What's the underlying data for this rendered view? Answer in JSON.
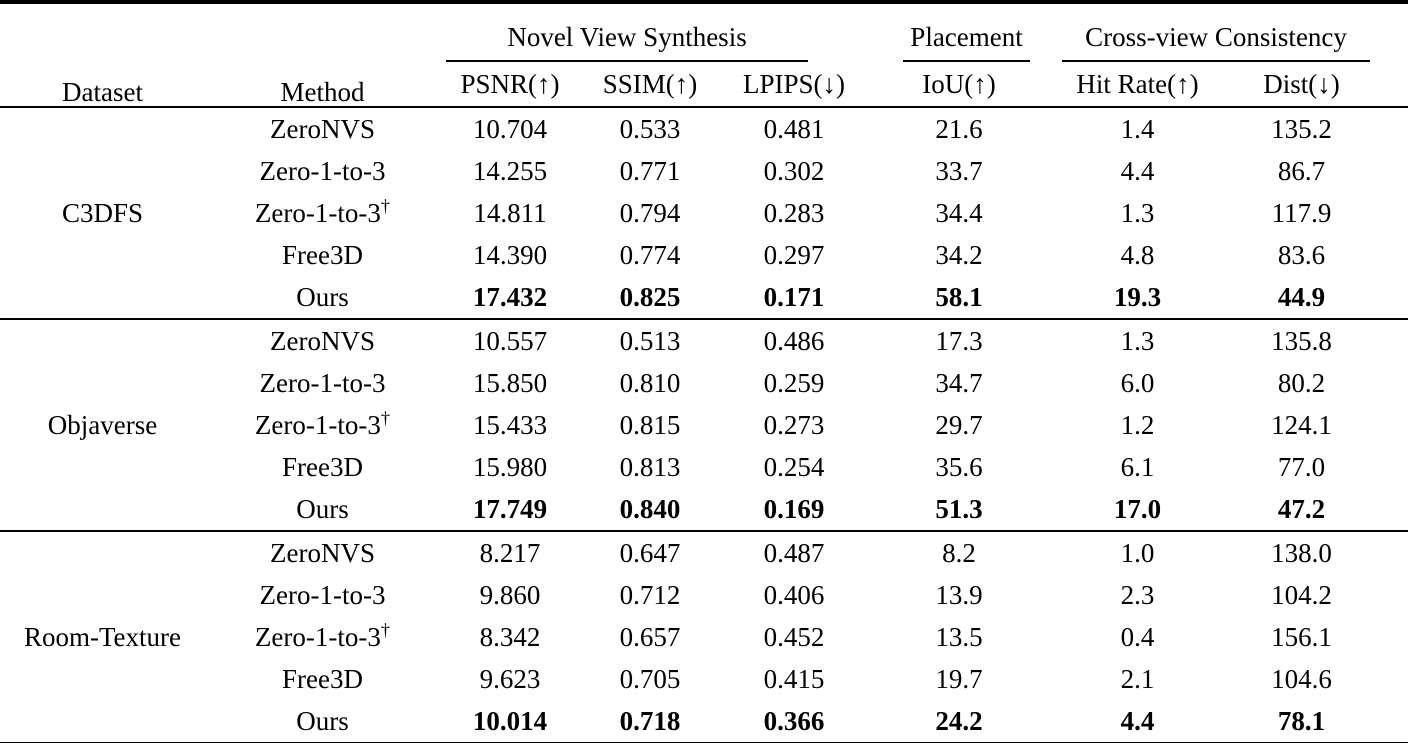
{
  "table": {
    "header": {
      "dataset": "Dataset",
      "method": "Method",
      "groups": [
        {
          "label": "Novel View Synthesis"
        },
        {
          "label": "Placement"
        },
        {
          "label": "Cross-view Consistency"
        }
      ],
      "subcols": [
        "PSNR(↑)",
        "SSIM(↑)",
        "LPIPS(↓)",
        "IoU(↑)",
        "Hit Rate(↑)",
        "Dist(↓)"
      ]
    },
    "blocks": [
      {
        "dataset": "C3DFS",
        "rows": [
          {
            "method": "ZeroNVS",
            "psnr": "10.704",
            "ssim": "0.533",
            "lpips": "0.481",
            "iou": "21.6",
            "hit_rate": "1.4",
            "dist": "135.2",
            "bold": false
          },
          {
            "method": "Zero-1-to-3",
            "psnr": "14.255",
            "ssim": "0.771",
            "lpips": "0.302",
            "iou": "33.7",
            "hit_rate": "4.4",
            "dist": "86.7",
            "bold": false
          },
          {
            "method": "Zero-1-to-3†",
            "psnr": "14.811",
            "ssim": "0.794",
            "lpips": "0.283",
            "iou": "34.4",
            "hit_rate": "1.3",
            "dist": "117.9",
            "bold": false
          },
          {
            "method": "Free3D",
            "psnr": "14.390",
            "ssim": "0.774",
            "lpips": "0.297",
            "iou": "34.2",
            "hit_rate": "4.8",
            "dist": "83.6",
            "bold": false
          },
          {
            "method": "Ours",
            "psnr": "17.432",
            "ssim": "0.825",
            "lpips": "0.171",
            "iou": "58.1",
            "hit_rate": "19.3",
            "dist": "44.9",
            "bold": true
          }
        ]
      },
      {
        "dataset": "Objaverse",
        "rows": [
          {
            "method": "ZeroNVS",
            "psnr": "10.557",
            "ssim": "0.513",
            "lpips": "0.486",
            "iou": "17.3",
            "hit_rate": "1.3",
            "dist": "135.8",
            "bold": false
          },
          {
            "method": "Zero-1-to-3",
            "psnr": "15.850",
            "ssim": "0.810",
            "lpips": "0.259",
            "iou": "34.7",
            "hit_rate": "6.0",
            "dist": "80.2",
            "bold": false
          },
          {
            "method": "Zero-1-to-3†",
            "psnr": "15.433",
            "ssim": "0.815",
            "lpips": "0.273",
            "iou": "29.7",
            "hit_rate": "1.2",
            "dist": "124.1",
            "bold": false
          },
          {
            "method": "Free3D",
            "psnr": "15.980",
            "ssim": "0.813",
            "lpips": "0.254",
            "iou": "35.6",
            "hit_rate": "6.1",
            "dist": "77.0",
            "bold": false
          },
          {
            "method": "Ours",
            "psnr": "17.749",
            "ssim": "0.840",
            "lpips": "0.169",
            "iou": "51.3",
            "hit_rate": "17.0",
            "dist": "47.2",
            "bold": true
          }
        ]
      },
      {
        "dataset": "Room-Texture",
        "rows": [
          {
            "method": "ZeroNVS",
            "psnr": "8.217",
            "ssim": "0.647",
            "lpips": "0.487",
            "iou": "8.2",
            "hit_rate": "1.0",
            "dist": "138.0",
            "bold": false
          },
          {
            "method": "Zero-1-to-3",
            "psnr": "9.860",
            "ssim": "0.712",
            "lpips": "0.406",
            "iou": "13.9",
            "hit_rate": "2.3",
            "dist": "104.2",
            "bold": false
          },
          {
            "method": "Zero-1-to-3†",
            "psnr": "8.342",
            "ssim": "0.657",
            "lpips": "0.452",
            "iou": "13.5",
            "hit_rate": "0.4",
            "dist": "156.1",
            "bold": false
          },
          {
            "method": "Free3D",
            "psnr": "9.623",
            "ssim": "0.705",
            "lpips": "0.415",
            "iou": "19.7",
            "hit_rate": "2.1",
            "dist": "104.6",
            "bold": false
          },
          {
            "method": "Ours",
            "psnr": "10.014",
            "ssim": "0.718",
            "lpips": "0.366",
            "iou": "24.2",
            "hit_rate": "4.4",
            "dist": "78.1",
            "bold": true
          }
        ]
      }
    ]
  }
}
